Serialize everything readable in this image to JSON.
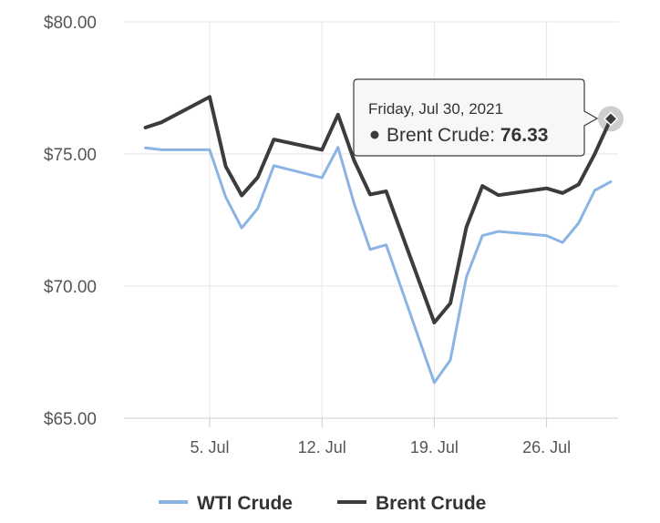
{
  "chart_data": {
    "type": "line",
    "title": "",
    "xlabel": "",
    "ylabel": "",
    "ylim": [
      65,
      80
    ],
    "y_ticks": [
      65,
      70,
      75,
      80
    ],
    "y_tick_labels": [
      "$65.00",
      "$70.00",
      "$75.00",
      "$80.00"
    ],
    "x_ticks": [
      "2021-07-05",
      "2021-07-12",
      "2021-07-19",
      "2021-07-26"
    ],
    "x_tick_labels": [
      "5. Jul",
      "12. Jul",
      "19. Jul",
      "26. Jul"
    ],
    "grid": true,
    "legend": "bottom",
    "series": [
      {
        "name": "WTI Crude",
        "color": "#8ab4e3",
        "points": [
          {
            "x": "2021-07-01",
            "y": 75.23
          },
          {
            "x": "2021-07-02",
            "y": 75.16
          },
          {
            "x": "2021-07-05",
            "y": 75.16
          },
          {
            "x": "2021-07-06",
            "y": 73.37
          },
          {
            "x": "2021-07-07",
            "y": 72.2
          },
          {
            "x": "2021-07-08",
            "y": 72.94
          },
          {
            "x": "2021-07-09",
            "y": 74.56
          },
          {
            "x": "2021-07-12",
            "y": 74.1
          },
          {
            "x": "2021-07-13",
            "y": 75.25
          },
          {
            "x": "2021-07-14",
            "y": 73.13
          },
          {
            "x": "2021-07-15",
            "y": 71.39
          },
          {
            "x": "2021-07-16",
            "y": 71.56
          },
          {
            "x": "2021-07-19",
            "y": 66.35
          },
          {
            "x": "2021-07-20",
            "y": 67.2
          },
          {
            "x": "2021-07-21",
            "y": 70.34
          },
          {
            "x": "2021-07-22",
            "y": 71.91
          },
          {
            "x": "2021-07-23",
            "y": 72.07
          },
          {
            "x": "2021-07-26",
            "y": 71.91
          },
          {
            "x": "2021-07-27",
            "y": 71.65
          },
          {
            "x": "2021-07-28",
            "y": 72.39
          },
          {
            "x": "2021-07-29",
            "y": 73.62
          },
          {
            "x": "2021-07-30",
            "y": 73.95
          }
        ]
      },
      {
        "name": "Brent Crude",
        "color": "#3c3c3e",
        "points": [
          {
            "x": "2021-07-01",
            "y": 76.0
          },
          {
            "x": "2021-07-02",
            "y": 76.2
          },
          {
            "x": "2021-07-05",
            "y": 77.16
          },
          {
            "x": "2021-07-06",
            "y": 74.53
          },
          {
            "x": "2021-07-07",
            "y": 73.43
          },
          {
            "x": "2021-07-08",
            "y": 74.12
          },
          {
            "x": "2021-07-09",
            "y": 75.55
          },
          {
            "x": "2021-07-12",
            "y": 75.16
          },
          {
            "x": "2021-07-13",
            "y": 76.49
          },
          {
            "x": "2021-07-14",
            "y": 74.76
          },
          {
            "x": "2021-07-15",
            "y": 73.47
          },
          {
            "x": "2021-07-16",
            "y": 73.59
          },
          {
            "x": "2021-07-19",
            "y": 68.62
          },
          {
            "x": "2021-07-20",
            "y": 69.35
          },
          {
            "x": "2021-07-21",
            "y": 72.23
          },
          {
            "x": "2021-07-22",
            "y": 73.79
          },
          {
            "x": "2021-07-23",
            "y": 73.44
          },
          {
            "x": "2021-07-26",
            "y": 73.7
          },
          {
            "x": "2021-07-27",
            "y": 73.52
          },
          {
            "x": "2021-07-28",
            "y": 73.85
          },
          {
            "x": "2021-07-29",
            "y": 75.0
          },
          {
            "x": "2021-07-30",
            "y": 76.33
          }
        ]
      }
    ],
    "tooltip": {
      "date": "Friday, Jul 30, 2021",
      "series": "Brent Crude",
      "label": "Brent Crude: ",
      "value": "76.33"
    }
  }
}
